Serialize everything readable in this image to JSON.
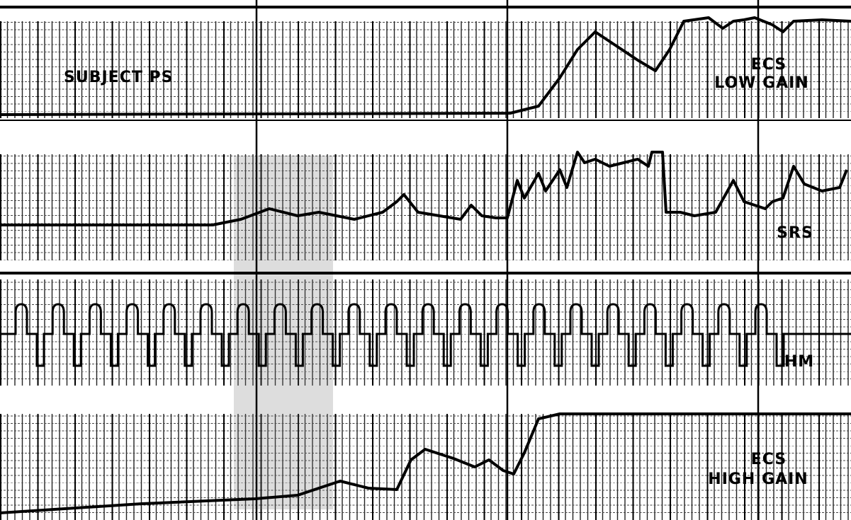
{
  "subject": "SUBJECT PS",
  "channels": [
    {
      "label_lines": [
        "ECS",
        "LOW GAIN"
      ]
    },
    {
      "label_lines": [
        "SRS"
      ]
    },
    {
      "label_lines": [
        "HM"
      ]
    },
    {
      "label_lines": [
        "ECS",
        "HIGH GAIN"
      ]
    }
  ]
}
